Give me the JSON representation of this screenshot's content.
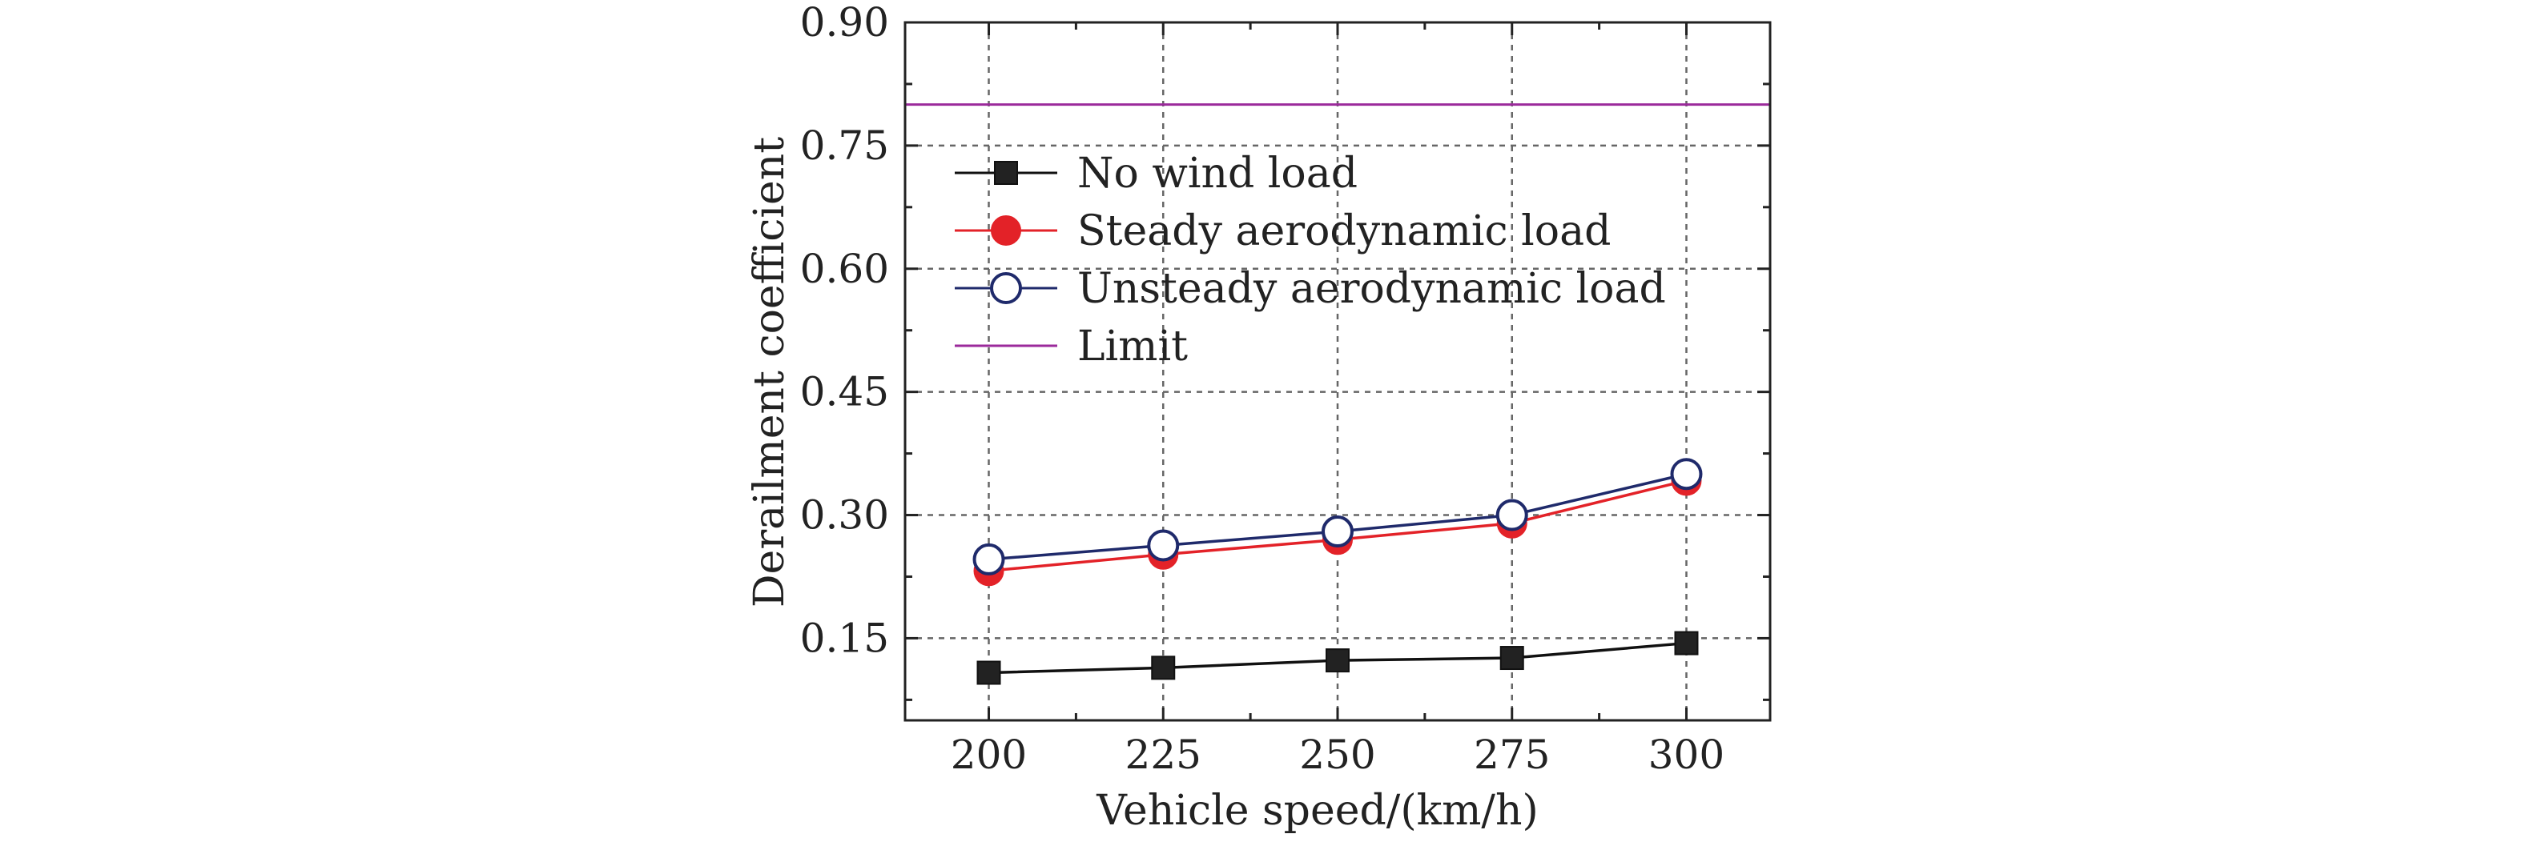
{
  "chart_data": {
    "type": "line",
    "xlabel": "Vehicle speed/(km/h)",
    "ylabel": "Derailment coefficient",
    "x": [
      200,
      225,
      250,
      275,
      300
    ],
    "xlim": [
      188,
      312
    ],
    "ylim": [
      0.05,
      0.9
    ],
    "xticks": [
      "200",
      "225",
      "250",
      "275",
      "300"
    ],
    "yticks": [
      "0.15",
      "0.30",
      "0.45",
      "0.60",
      "0.75",
      "0.90"
    ],
    "grid": true,
    "legend_position": "upper-left",
    "series": [
      {
        "name": "No wind load",
        "values": [
          0.108,
          0.114,
          0.123,
          0.126,
          0.144
        ],
        "color": "#111111",
        "marker": "square"
      },
      {
        "name": "Steady aerodynamic load",
        "values": [
          0.232,
          0.252,
          0.27,
          0.29,
          0.342
        ],
        "color": "#e32228",
        "marker": "filled-circle"
      },
      {
        "name": "Unsteady aerodynamic load",
        "values": [
          0.246,
          0.263,
          0.28,
          0.3,
          0.35
        ],
        "color": "#1f2a6b",
        "marker": "open-circle"
      }
    ],
    "reference_lines": [
      {
        "name": "Limit",
        "value": 0.8,
        "color": "#9b2a9b"
      }
    ]
  }
}
